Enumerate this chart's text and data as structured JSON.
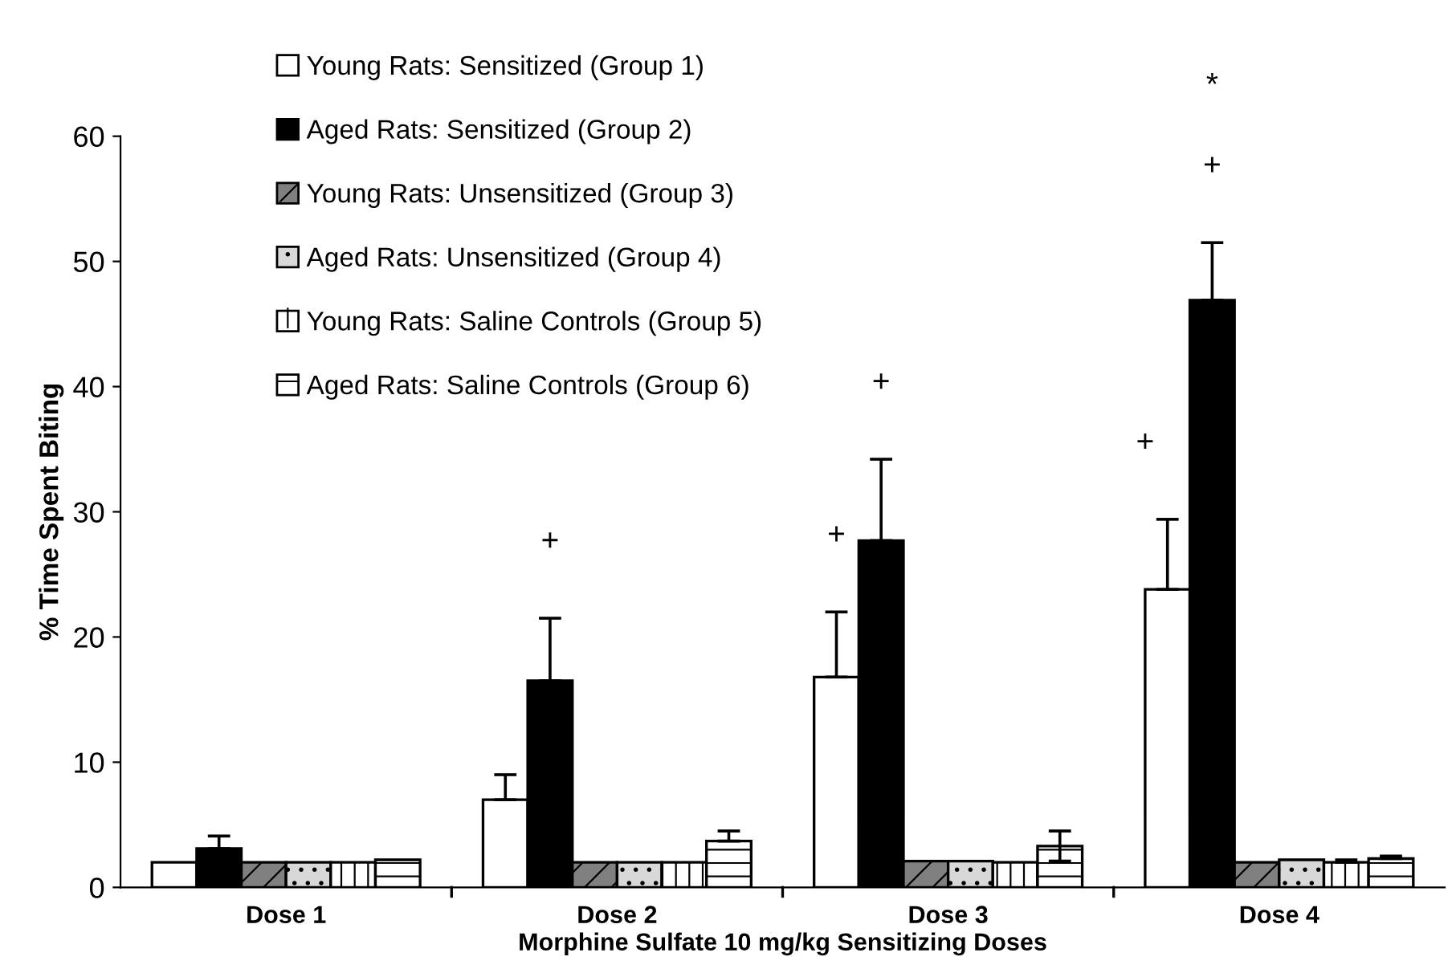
{
  "chart_data": {
    "type": "bar",
    "xlabel": "Morphine Sulfate 10 mg/kg Sensitizing Doses",
    "ylabel": "% Time Spent Biting",
    "categories": [
      "Dose 1",
      "Dose 2",
      "Dose 3",
      "Dose 4"
    ],
    "ylim": [
      0,
      60
    ],
    "yticks": [
      0,
      10,
      20,
      30,
      40,
      50,
      60
    ],
    "grid": false,
    "legend": "top left",
    "series": [
      {
        "name": "Young Rats: Sensitized (Group 1)",
        "color": "#ffffff",
        "values": [
          2,
          7,
          16.8,
          23.8
        ],
        "errors": [
          null,
          [
            7,
            9
          ],
          [
            16.8,
            22
          ],
          [
            23.8,
            29.4
          ]
        ]
      },
      {
        "name": "Aged Rats: Sensitized (Group 2)",
        "color": "#000000",
        "values": [
          3.1,
          16.5,
          27.7,
          46.9
        ],
        "errors": [
          [
            3.1,
            4.1
          ],
          [
            16.5,
            21.5
          ],
          [
            27.7,
            34.2
          ],
          [
            46.9,
            51.5
          ]
        ]
      },
      {
        "name": "Young Rats: Unsensitized (Group 3)",
        "color": "#808080",
        "values": [
          2,
          2,
          2.1,
          2
        ],
        "errors": [
          null,
          null,
          null,
          null
        ]
      },
      {
        "name": "Aged Rats: Unsensitized (Group 4)",
        "color": "#d8d8d8",
        "values": [
          2,
          2,
          2.1,
          2.2
        ],
        "errors": [
          null,
          null,
          null,
          null
        ]
      },
      {
        "name": "Young Rats: Saline Controls (Group 5)",
        "color": "#ffffff",
        "values": [
          2,
          2,
          2,
          2
        ],
        "errors": [
          null,
          null,
          null,
          [
            2,
            2.2
          ]
        ]
      },
      {
        "name": "Aged Rats: Saline Controls (Group 6)",
        "color": "#ffffff",
        "values": [
          2.2,
          3.7,
          3.3,
          2.3
        ],
        "errors": [
          null,
          [
            3.7,
            4.5
          ],
          [
            2.1,
            4.5
          ],
          [
            2.3,
            2.5
          ]
        ]
      }
    ],
    "annotations": [
      "+",
      "+",
      "+",
      "+",
      "+",
      "*"
    ]
  }
}
